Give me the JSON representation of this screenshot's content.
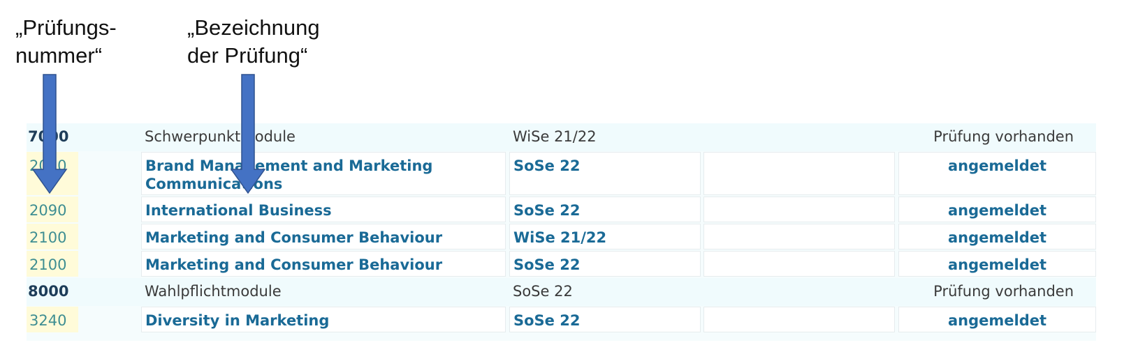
{
  "annotations": {
    "exam_number_label": [
      "„Prüfungs-",
      "nummer“"
    ],
    "exam_title_label": [
      "„Bezeichnung",
      "der Prüfung“"
    ]
  },
  "rows": [
    {
      "type": "head",
      "number": "7000",
      "title": "Schwerpunktmodule",
      "semester": "WiSe 21/22",
      "extra": "",
      "status": "Prüfung vorhanden"
    },
    {
      "type": "exam",
      "number": "2020",
      "title": "Brand Management and Marketing Communications",
      "semester": "SoSe 22",
      "extra": "",
      "status": "angemeldet"
    },
    {
      "type": "exam",
      "number": "2090",
      "title": "International Business",
      "semester": "SoSe 22",
      "extra": "",
      "status": "angemeldet"
    },
    {
      "type": "exam",
      "number": "2100",
      "title": "Marketing and Consumer Behaviour",
      "semester": "WiSe 21/22",
      "extra": "",
      "status": "angemeldet"
    },
    {
      "type": "exam",
      "number": "2100",
      "title": "Marketing and Consumer Behaviour",
      "semester": "SoSe 22",
      "extra": "",
      "status": "angemeldet"
    },
    {
      "type": "head",
      "number": "8000",
      "title": "Wahlpflichtmodule",
      "semester": "SoSe 22",
      "extra": "",
      "status": "Prüfung vorhanden"
    },
    {
      "type": "exam",
      "number": "3240",
      "title": "Diversity in Marketing",
      "semester": "SoSe 22",
      "extra": "",
      "status": "angemeldet"
    }
  ],
  "colors": {
    "arrow_fill": "#4472c4",
    "arrow_stroke": "#2f528f",
    "link_text": "#1a6a96",
    "number_highlight": "#fffbd9"
  }
}
